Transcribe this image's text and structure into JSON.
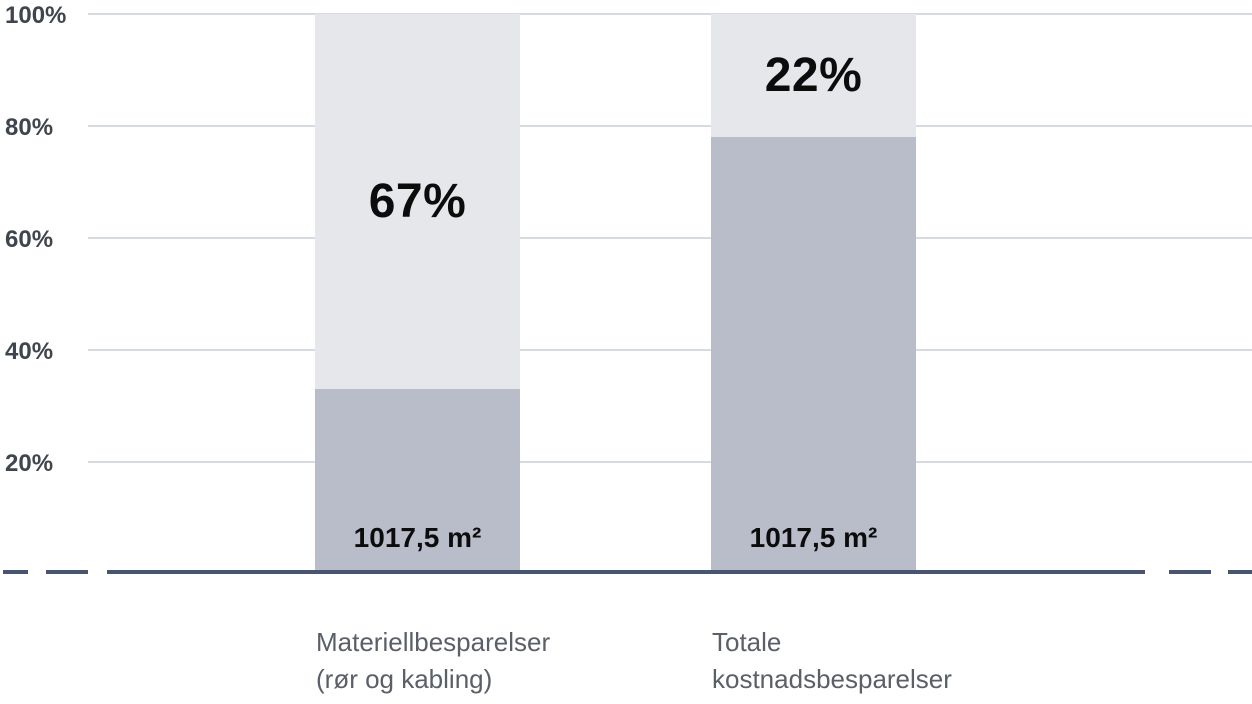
{
  "chart_data": {
    "type": "bar",
    "subtype": "stacked-percentage-columns",
    "title": "",
    "xlabel": "",
    "ylabel": "",
    "legend": "none",
    "categories": [
      {
        "line1": "Materiellbesparelser",
        "line2": "(rør og kabling)"
      },
      {
        "line1": "Totale",
        "line2": "kostnadsbesparelser"
      }
    ],
    "series": [
      {
        "name": "bottom-segment",
        "values": [
          33,
          78
        ],
        "data_labels": [
          "1017,5 m²",
          "1017,5 m²"
        ],
        "color": "#b8bdc9"
      },
      {
        "name": "top-segment",
        "values": [
          67,
          22
        ],
        "data_labels": [
          "67%",
          "22%"
        ],
        "color": "#e6e7eb"
      }
    ],
    "y_axis": {
      "ticks": [
        "100%",
        "80%",
        "60%",
        "40%",
        "20%"
      ],
      "tick_values": [
        100,
        80,
        60,
        40,
        20
      ],
      "range": [
        0,
        100
      ],
      "gridlines": true
    },
    "colors": {
      "background": "#ffffff",
      "gridline": "#d6dae1",
      "axis_line": "#475570",
      "tick_text": "#3f444d",
      "category_text": "#5a5f68",
      "data_label_text": "#0c0c0c",
      "segment_bottom": "#b8bdc9",
      "segment_top": "#e6e7eb"
    }
  }
}
